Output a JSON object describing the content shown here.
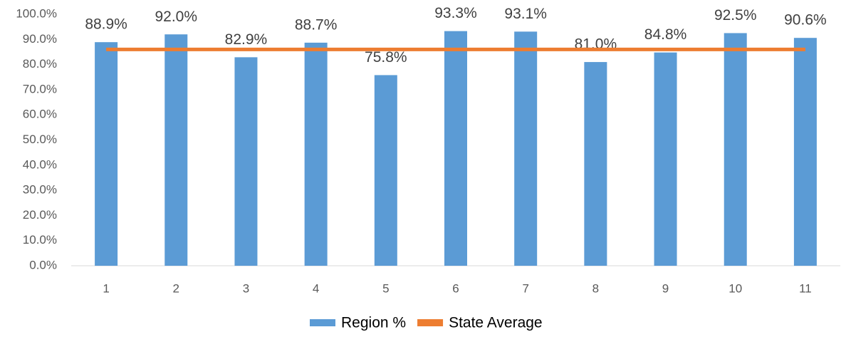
{
  "chart_data": {
    "type": "bar",
    "categories": [
      "1",
      "2",
      "3",
      "4",
      "5",
      "6",
      "7",
      "8",
      "9",
      "10",
      "11"
    ],
    "series": [
      {
        "name": "Region %",
        "color": "#5b9bd5",
        "type": "bar",
        "values": [
          88.9,
          92.0,
          82.9,
          88.7,
          75.8,
          93.3,
          93.1,
          81.0,
          84.8,
          92.5,
          90.6
        ],
        "value_labels": [
          "88.9%",
          "92.0%",
          "82.9%",
          "88.7%",
          "75.8%",
          "93.3%",
          "93.1%",
          "81.0%",
          "84.8%",
          "92.5%",
          "90.6%"
        ]
      },
      {
        "name": "State Average",
        "color": "#ed7d31",
        "type": "line",
        "values": [
          86.0,
          86.0,
          86.0,
          86.0,
          86.0,
          86.0,
          86.0,
          86.0,
          86.0,
          86.0,
          86.0
        ]
      }
    ],
    "ylim": [
      0,
      100
    ],
    "yticks": [
      {
        "value": 0,
        "label": "0.0%"
      },
      {
        "value": 10,
        "label": "10.0%"
      },
      {
        "value": 20,
        "label": "20.0%"
      },
      {
        "value": 30,
        "label": "30.0%"
      },
      {
        "value": 40,
        "label": "40.0%"
      },
      {
        "value": 50,
        "label": "50.0%"
      },
      {
        "value": 60,
        "label": "60.0%"
      },
      {
        "value": 70,
        "label": "70.0%"
      },
      {
        "value": 80,
        "label": "80.0%"
      },
      {
        "value": 90,
        "label": "90.0%"
      },
      {
        "value": 100,
        "label": "100.0%"
      }
    ],
    "grid": false,
    "legend": "bottom"
  }
}
